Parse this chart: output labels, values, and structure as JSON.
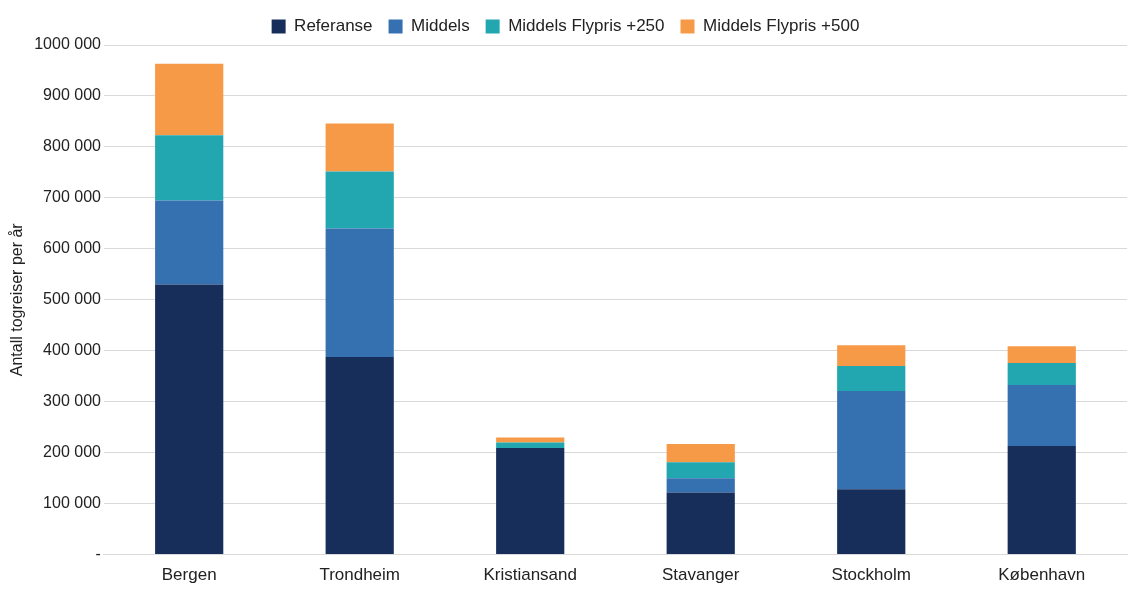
{
  "chart_data": {
    "type": "bar",
    "stacked": true,
    "ylabel": "Antall togreiser per år",
    "categories": [
      "Bergen",
      "Trondheim",
      "Kristiansand",
      "Stavanger",
      "Stockholm",
      "København"
    ],
    "series": [
      {
        "name": "Referanse",
        "color": "#172e5a",
        "values": [
          530000,
          388000,
          209000,
          122000,
          128000,
          213000
        ]
      },
      {
        "name": "Middels",
        "color": "#3570b0",
        "values": [
          165000,
          252000,
          0,
          28000,
          193000,
          120000
        ]
      },
      {
        "name": "Middels Flypris +250",
        "color": "#22a7b0",
        "values": [
          128000,
          112000,
          11000,
          31000,
          49000,
          43000
        ]
      },
      {
        "name": "Middels Flypris +500",
        "color": "#f79a48",
        "values": [
          140000,
          94000,
          10000,
          36000,
          41000,
          33000
        ]
      }
    ],
    "ylim": [
      0,
      1000000
    ],
    "yticks": [
      {
        "value": 0,
        "label": "-"
      },
      {
        "value": 100000,
        "label": "100 000"
      },
      {
        "value": 200000,
        "label": "200 000"
      },
      {
        "value": 300000,
        "label": "300 000"
      },
      {
        "value": 400000,
        "label": "400 000"
      },
      {
        "value": 500000,
        "label": "500 000"
      },
      {
        "value": 600000,
        "label": "600 000"
      },
      {
        "value": 700000,
        "label": "700 000"
      },
      {
        "value": 800000,
        "label": "800 000"
      },
      {
        "value": 900000,
        "label": "900 000"
      },
      {
        "value": 1000000,
        "label": "1000 000"
      }
    ],
    "grid": "y",
    "legend": "top"
  }
}
